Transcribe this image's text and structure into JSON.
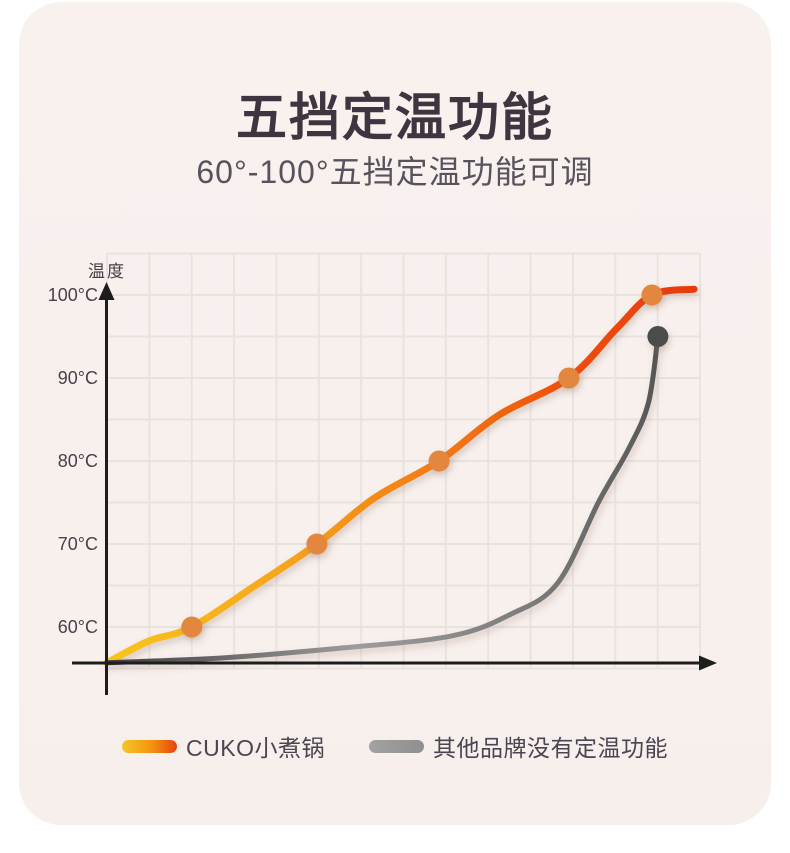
{
  "page": {
    "background": "#ffffff",
    "panel_color": "#f8f1ee"
  },
  "header": {
    "title": "五挡定温功能",
    "subtitle": "60°-100°五挡定温功能可调"
  },
  "colors": {
    "title_text": "#3e3540",
    "axis": "#1d1d1d",
    "grid_line": "#e9e3e0",
    "orange_marker": "#e2873c",
    "gray_marker": "#4c4c4c",
    "cuko_gradient": [
      "#f7c51f",
      "#f6a51c",
      "#f37b14",
      "#ee4e0d",
      "#e9380a"
    ],
    "other_gradient": [
      "#3f3f3f",
      "#9c9c9c",
      "#787878",
      "#565656"
    ]
  },
  "chart_data": {
    "type": "line",
    "title": "五挡定温功能",
    "subtitle": "60°-100°五挡定温功能可调",
    "xlabel": "",
    "ylabel": "温度",
    "grid": true,
    "x_range": [
      0,
      100
    ],
    "y_axis": {
      "tick_labels": [
        "100°C",
        "90°C",
        "80°C",
        "70°C",
        "60°C"
      ],
      "tick_values": [
        100,
        90,
        80,
        70,
        60
      ]
    },
    "series": [
      {
        "name": "CUKO小煮锅",
        "style": "gradient-yellow-to-red",
        "points": [
          [
            0,
            55.7
          ],
          [
            7,
            58.3
          ],
          [
            14.3,
            60
          ],
          [
            25,
            65
          ],
          [
            35.4,
            70
          ],
          [
            45,
            75.5
          ],
          [
            56,
            80
          ],
          [
            66,
            85.5
          ],
          [
            77.9,
            90
          ],
          [
            86,
            96
          ],
          [
            91.9,
            100
          ],
          [
            99,
            100.7
          ]
        ],
        "markers": [
          [
            14.3,
            60
          ],
          [
            35.4,
            70
          ],
          [
            56,
            80
          ],
          [
            77.9,
            90
          ],
          [
            91.9,
            100
          ]
        ],
        "marker_temps": [
          60,
          70,
          80,
          90,
          100
        ]
      },
      {
        "name": "其他品牌没有定温功能",
        "style": "gray",
        "points": [
          [
            0,
            55.7
          ],
          [
            20,
            56.3
          ],
          [
            40,
            57.5
          ],
          [
            58,
            58.9
          ],
          [
            68,
            61.5
          ],
          [
            76,
            65.3
          ],
          [
            83,
            75.2
          ],
          [
            88,
            81.5
          ],
          [
            91.3,
            87
          ],
          [
            92.9,
            95
          ]
        ],
        "markers": [
          [
            92.9,
            95
          ]
        ],
        "marker_temps": [
          95
        ]
      }
    ],
    "legend_position": "bottom"
  },
  "legend": {
    "items": [
      {
        "label": "CUKO小煮锅"
      },
      {
        "label": "其他品牌没有定温功能"
      }
    ]
  }
}
